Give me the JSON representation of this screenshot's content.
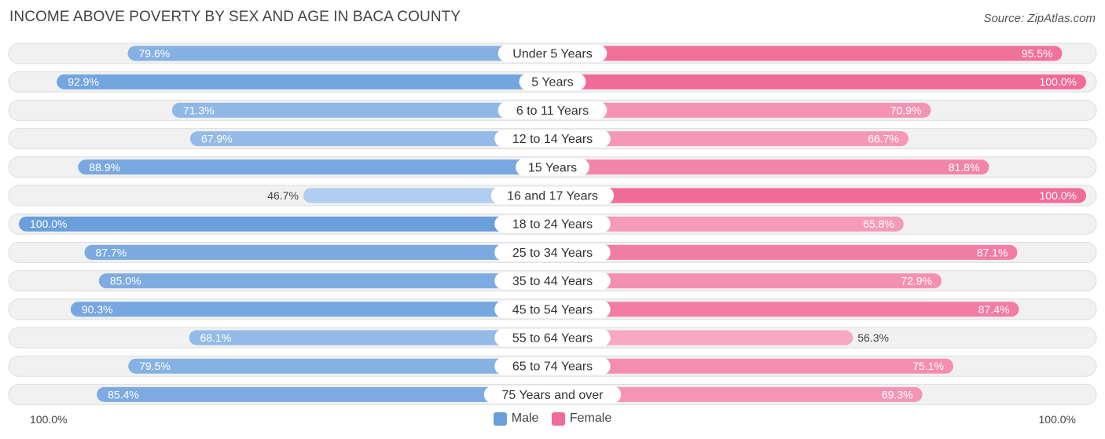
{
  "header": {
    "title": "INCOME ABOVE POVERTY BY SEX AND AGE IN BACA COUNTY",
    "source": "Source: ZipAtlas.com"
  },
  "axis": {
    "left_label": "100.0%",
    "right_label": "100.0%"
  },
  "legend": {
    "male_label": "Male",
    "female_label": "Female",
    "male_color": "#6a9fdc",
    "female_color": "#f06b97"
  },
  "chart_data": {
    "type": "bar",
    "orientation": "horizontal-diverging",
    "title": "INCOME ABOVE POVERTY BY SEX AND AGE IN BACA COUNTY",
    "xlim": [
      0,
      100
    ],
    "categories": [
      "Under 5 Years",
      "5 Years",
      "6 to 11 Years",
      "12 to 14 Years",
      "15 Years",
      "16 and 17 Years",
      "18 to 24 Years",
      "25 to 34 Years",
      "35 to 44 Years",
      "45 to 54 Years",
      "55 to 64 Years",
      "65 to 74 Years",
      "75 Years and over"
    ],
    "series": [
      {
        "name": "Male",
        "values": [
          79.6,
          92.9,
          71.3,
          67.9,
          88.9,
          46.7,
          100.0,
          87.7,
          85.0,
          90.3,
          68.1,
          79.5,
          85.4
        ],
        "labels": [
          "79.6%",
          "92.9%",
          "71.3%",
          "67.9%",
          "88.9%",
          "46.7%",
          "100.0%",
          "87.7%",
          "85.0%",
          "90.3%",
          "68.1%",
          "79.5%",
          "85.4%"
        ]
      },
      {
        "name": "Female",
        "values": [
          95.5,
          100.0,
          70.9,
          66.7,
          81.8,
          100.0,
          65.8,
          87.1,
          72.9,
          87.4,
          56.3,
          75.1,
          69.3
        ],
        "labels": [
          "95.5%",
          "100.0%",
          "70.9%",
          "66.7%",
          "81.8%",
          "100.0%",
          "65.8%",
          "87.1%",
          "72.9%",
          "87.4%",
          "56.3%",
          "75.1%",
          "69.3%"
        ]
      }
    ]
  }
}
